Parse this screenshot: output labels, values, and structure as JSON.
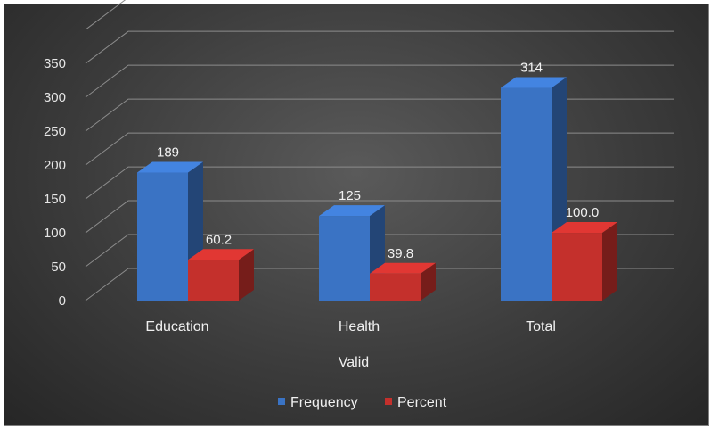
{
  "chart_data": {
    "type": "bar",
    "categories": [
      "Education",
      "Health",
      "Total"
    ],
    "series": [
      {
        "name": "Frequency",
        "values": [
          189,
          125,
          314
        ],
        "labels": [
          "189",
          "125",
          "314"
        ],
        "color": "#3a73c4"
      },
      {
        "name": "Percent",
        "values": [
          60.2,
          39.8,
          100.0
        ],
        "labels": [
          "60.2",
          "39.8",
          "100.0"
        ],
        "color": "#c4302c"
      }
    ],
    "xlabel": "Valid",
    "ylabel": "",
    "ylim": [
      0,
      400
    ],
    "yticks": [
      "0",
      "50",
      "100",
      "150",
      "200",
      "250",
      "300",
      "350"
    ],
    "grid": true,
    "legend": "bottom",
    "style": "3d-clustered-column"
  }
}
